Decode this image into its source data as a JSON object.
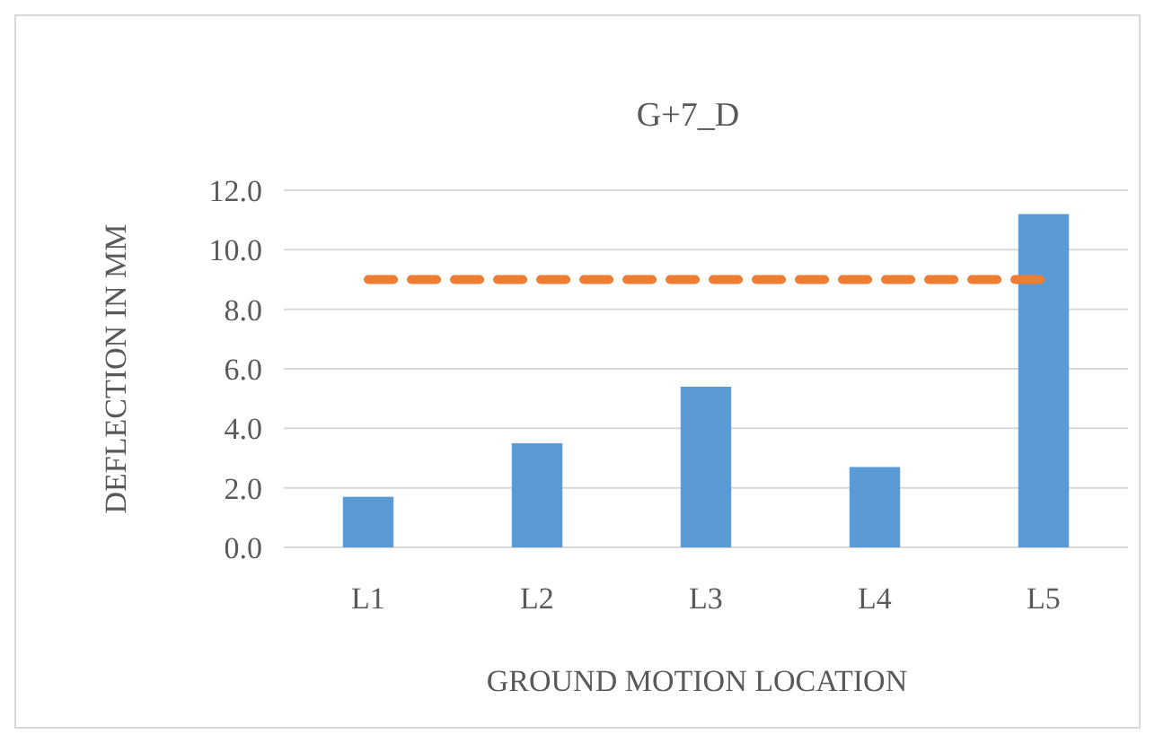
{
  "chart_data": {
    "type": "bar",
    "title": "G+7_D",
    "xlabel": "GROUND MOTION LOCATION",
    "ylabel": "DEFLECTION IN MM",
    "categories": [
      "L1",
      "L2",
      "L3",
      "L4",
      "L5"
    ],
    "series": [
      {
        "color": "#5b9bd5",
        "values": [
          1.7,
          3.5,
          5.4,
          2.7,
          11.2
        ]
      },
      {
        "type": "line",
        "color": "#ed7d31",
        "line_style": "dashed",
        "values": [
          9.0,
          9.0,
          9.0,
          9.0,
          9.0
        ]
      }
    ],
    "ylim": [
      0,
      12
    ],
    "yticks": [
      {
        "value": 0,
        "label": "0.0"
      },
      {
        "value": 2,
        "label": "2.0"
      },
      {
        "value": 4,
        "label": "4.0"
      },
      {
        "value": 6,
        "label": "6.0"
      },
      {
        "value": 8,
        "label": "8.0"
      },
      {
        "value": 10,
        "label": "10.0"
      },
      {
        "value": 12,
        "label": "12.0"
      }
    ],
    "grid": "y",
    "marker": "none"
  }
}
